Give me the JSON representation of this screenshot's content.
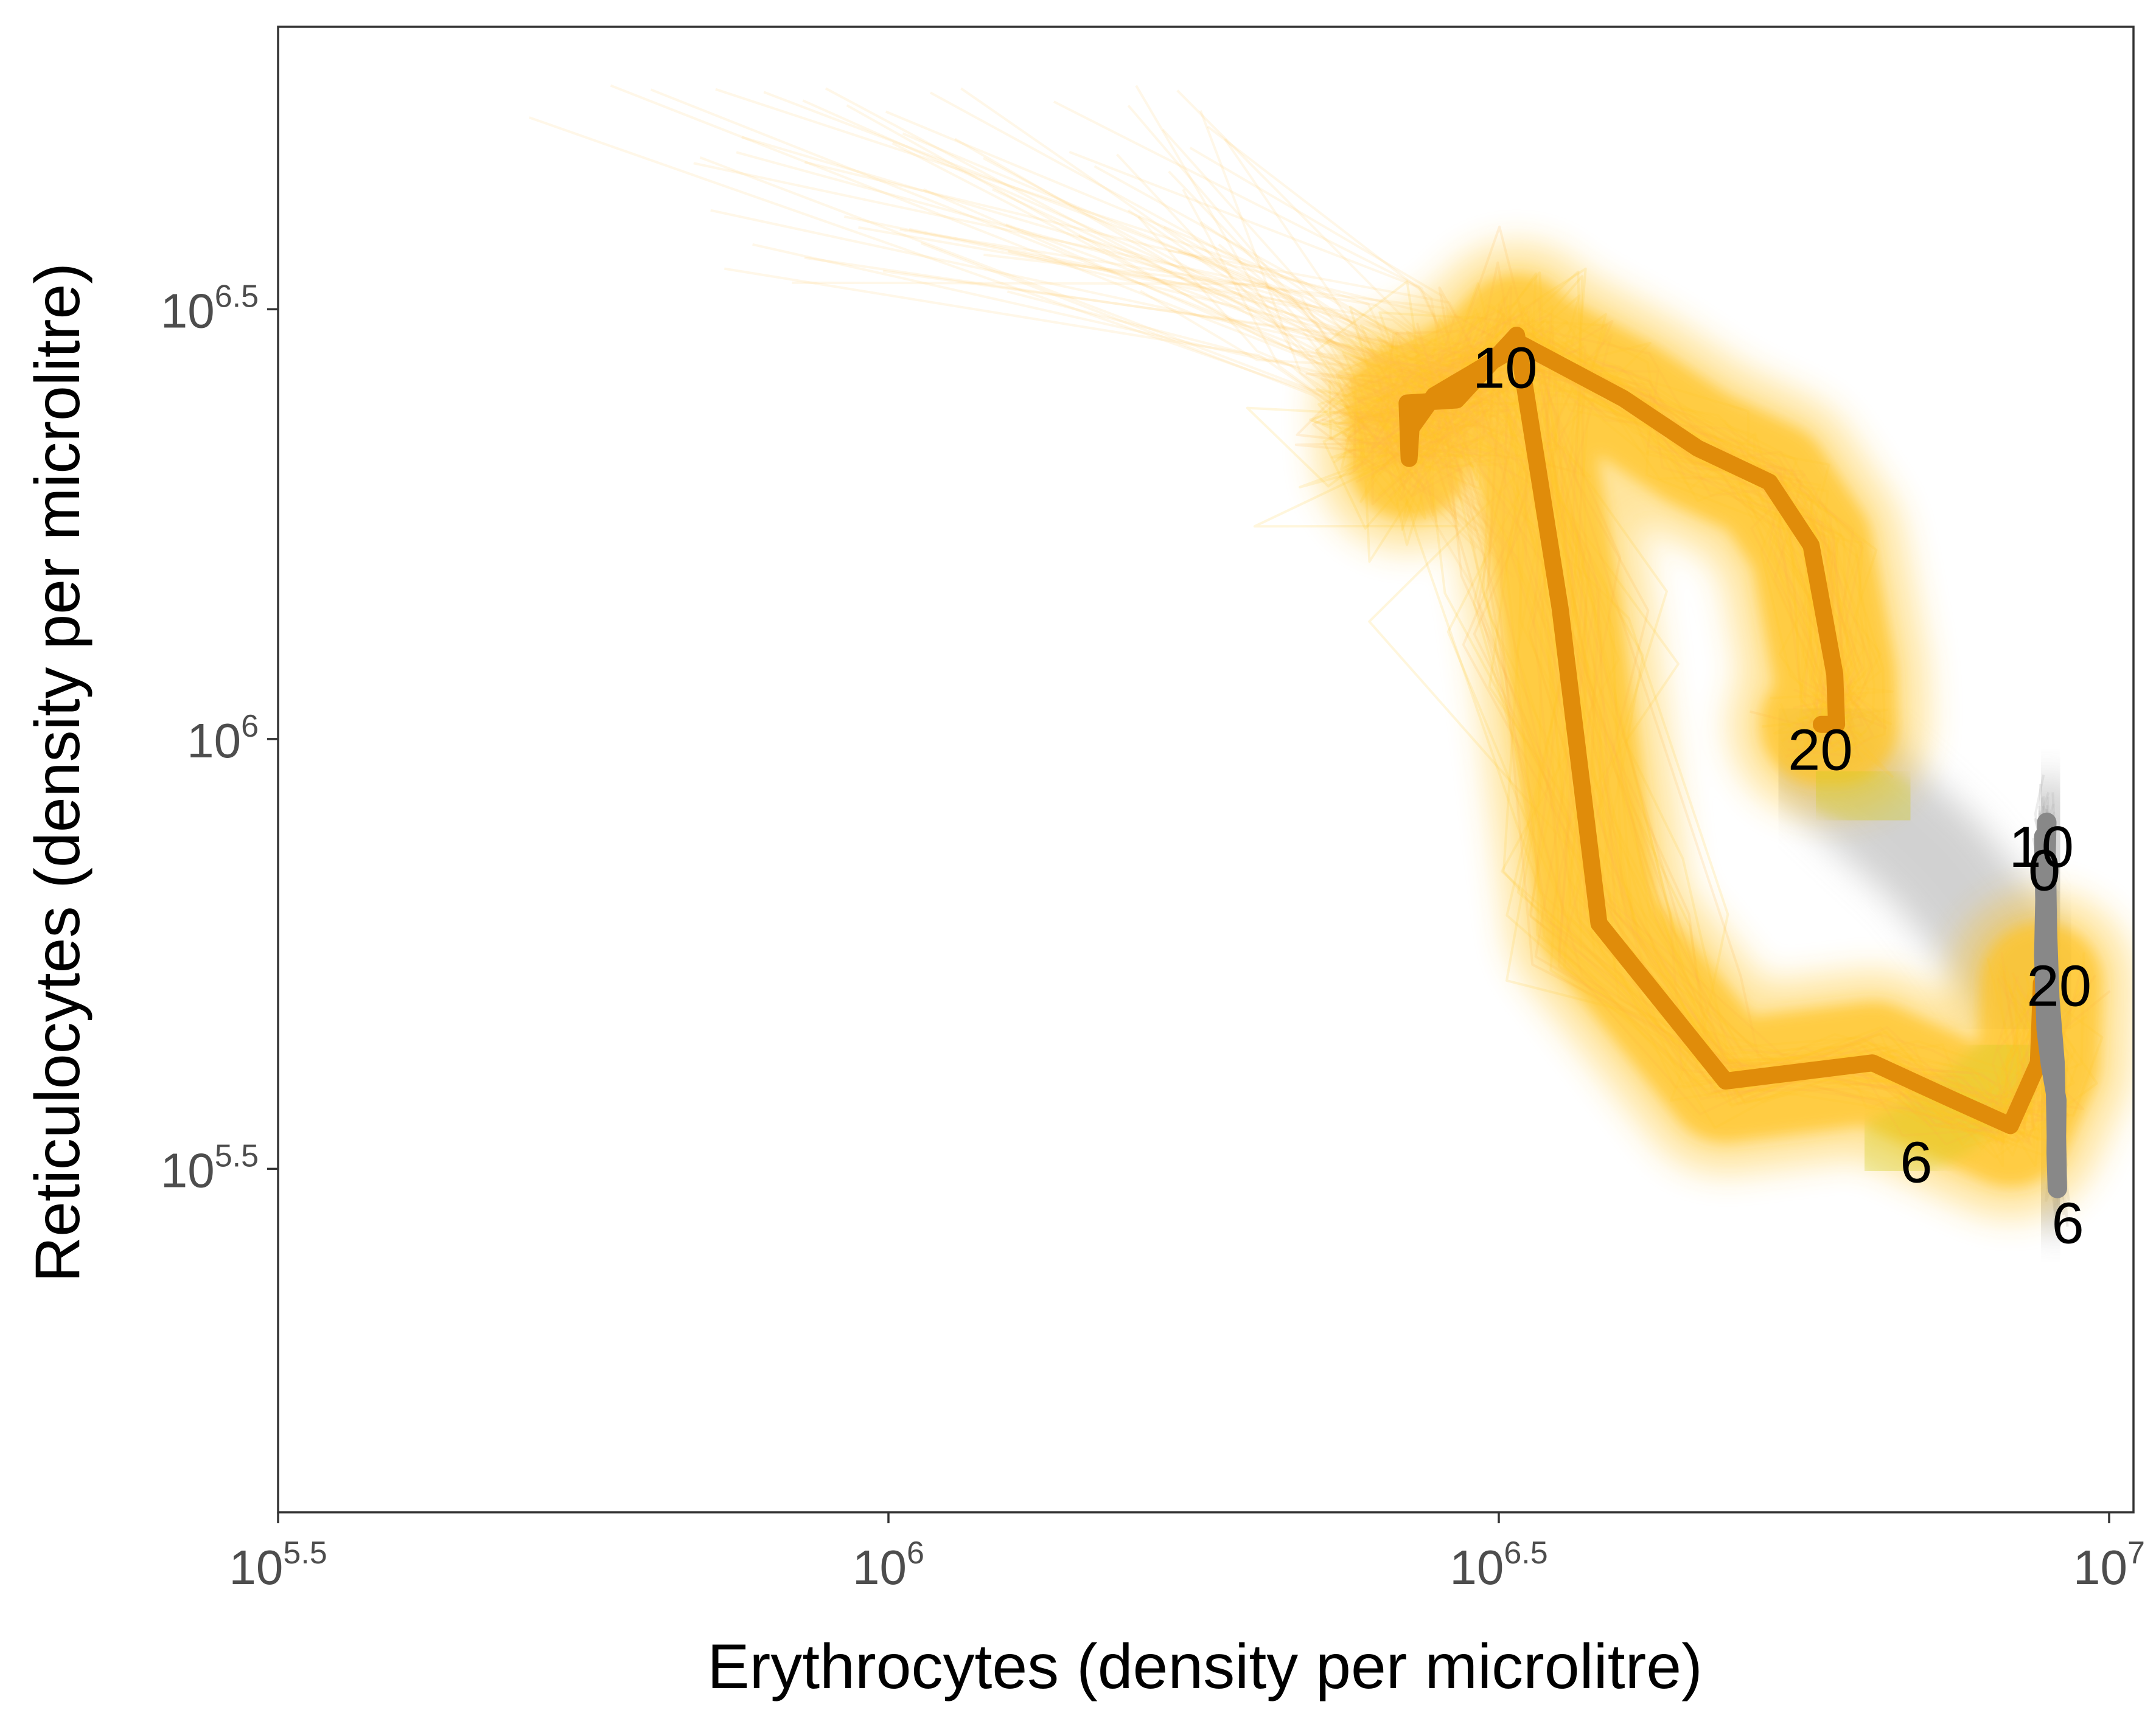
{
  "chart_data": {
    "type": "line",
    "title": "",
    "xlabel": "Erythrocytes (density per microlitre)",
    "ylabel": "Reticulocytes (density per microlitre)",
    "x_scale": "log10",
    "y_scale": "log10",
    "xlim": [
      316228,
      10470000
    ],
    "ylim": [
      126000,
      6740000
    ],
    "x_ticks": [
      {
        "value": 316228,
        "base": "10",
        "exp": "5.5"
      },
      {
        "value": 1000000,
        "base": "10",
        "exp": "6"
      },
      {
        "value": 3162278,
        "base": "10",
        "exp": "6.5"
      },
      {
        "value": 10000000,
        "base": "10",
        "exp": "7"
      }
    ],
    "y_ticks": [
      {
        "value": 316228,
        "base": "10",
        "exp": "5.5"
      },
      {
        "value": 1000000,
        "base": "10",
        "exp": "6"
      },
      {
        "value": 3162278,
        "base": "10",
        "exp": "6.5"
      }
    ],
    "grid": false,
    "legend": "none",
    "colors": {
      "infected_ensemble": "#ffc425",
      "infected_median": "#e08c0a",
      "control_ensemble": "#b4b4b4",
      "control_median": "#888888",
      "overlap_tint": "#d2cc1e",
      "axis": "#333333"
    },
    "series": [
      {
        "values": [
          {
            "x": 8800000,
            "y": 520000
          },
          {
            "x": 8750000,
            "y": 420000
          },
          {
            "x": 8300000,
            "y": 355000
          },
          {
            "x": 7400000,
            "y": 382000
          },
          {
            "x": 6400000,
            "y": 420000
          },
          {
            "x": 4850000,
            "y": 400000
          },
          {
            "x": 3820000,
            "y": 610000
          },
          {
            "x": 3550000,
            "y": 1420000
          },
          {
            "x": 3270000,
            "y": 2950000
          },
          {
            "x": 2920000,
            "y": 2480000
          },
          {
            "x": 2660000,
            "y": 2460000
          },
          {
            "x": 2670000,
            "y": 2120000
          },
          {
            "x": 2680000,
            "y": 2300000
          },
          {
            "x": 2800000,
            "y": 2510000
          },
          {
            "x": 2920000,
            "y": 2600000
          },
          {
            "x": 3300000,
            "y": 2880000
          },
          {
            "x": 4000000,
            "y": 2490000
          },
          {
            "x": 4600000,
            "y": 2180000
          },
          {
            "x": 5270000,
            "y": 1990000
          },
          {
            "x": 5700000,
            "y": 1680000
          },
          {
            "x": 5960000,
            "y": 1190000
          },
          {
            "x": 5980000,
            "y": 1040000
          },
          {
            "x": 5810000,
            "y": 1040000
          }
        ],
        "labels": [
          {
            "text": "6",
            "x": 6950000,
            "y": 318000
          },
          {
            "text": "10",
            "x": 3200000,
            "y": 2670000
          },
          {
            "text": "20",
            "x": 5800000,
            "y": 960000
          }
        ]
      },
      {
        "values": [
          {
            "x": 8840000,
            "y": 770000
          },
          {
            "x": 8860000,
            "y": 650000
          },
          {
            "x": 8840000,
            "y": 560000
          },
          {
            "x": 8880000,
            "y": 460000
          },
          {
            "x": 8950000,
            "y": 420000
          },
          {
            "x": 9060000,
            "y": 380000
          },
          {
            "x": 9050000,
            "y": 330000
          },
          {
            "x": 9070000,
            "y": 300000
          },
          {
            "x": 9030000,
            "y": 420000
          },
          {
            "x": 8940000,
            "y": 500000
          },
          {
            "x": 8900000,
            "y": 600000
          },
          {
            "x": 8880000,
            "y": 740000
          },
          {
            "x": 8890000,
            "y": 800000
          }
        ],
        "labels": [
          {
            "text": "0",
            "x": 8850000,
            "y": 695000
          },
          {
            "text": "10",
            "x": 8800000,
            "y": 740000
          },
          {
            "text": "20",
            "x": 9100000,
            "y": 510000
          },
          {
            "text": "6",
            "x": 9250000,
            "y": 270000
          }
        ]
      }
    ]
  }
}
